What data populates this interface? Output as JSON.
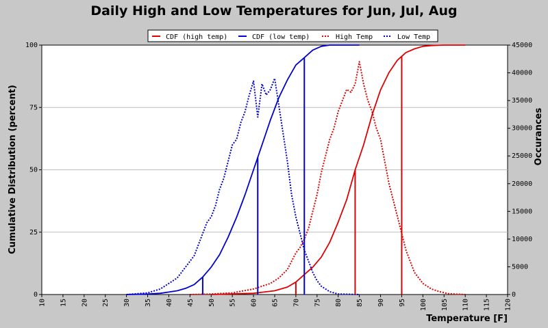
{
  "chart_data": {
    "type": "line",
    "title": "Daily High and Low Temperatures for Jun, Jul, Aug",
    "xlabel": "Temperature [F]",
    "ylabel_left": "Cumulative Distribution (percent)",
    "ylabel_right": "Occurances",
    "xlim": [
      10,
      120
    ],
    "ylim_left": [
      0,
      100
    ],
    "ylim_right": [
      0,
      45000
    ],
    "x_ticks": [
      "10",
      "15",
      "20",
      "25",
      "30",
      "35",
      "40",
      "45",
      "50",
      "55",
      "60",
      "65",
      "70",
      "75",
      "80",
      "85",
      "90",
      "95",
      "100",
      "105",
      "110",
      "115",
      "120"
    ],
    "y_left_ticks": [
      "0",
      "25",
      "50",
      "75",
      "100"
    ],
    "y_right_ticks": [
      "0",
      "5000",
      "10000",
      "15000",
      "20000",
      "25000",
      "30000",
      "35000",
      "40000",
      "45000"
    ],
    "grid": "horizontal",
    "legend": [
      "CDF (high temp)",
      "CDF (low temp)",
      "High Temp",
      "Low Temp"
    ],
    "colors": {
      "high": "#e00000",
      "low": "#0000d0",
      "background": "#c8c8c8",
      "plot_bg": "#ffffff"
    },
    "series": [
      {
        "name": "CDF (high temp)",
        "axis": "left",
        "style": "solid",
        "color": "#e00000",
        "x": [
          50,
          60,
          65,
          68,
          70,
          72,
          74,
          76,
          78,
          80,
          82,
          84,
          86,
          88,
          90,
          92,
          94,
          96,
          98,
          100,
          102,
          105,
          110
        ],
        "y": [
          0,
          0.5,
          1.5,
          3,
          5,
          8,
          11,
          15,
          21,
          29,
          38,
          50,
          60,
          72,
          82,
          89,
          94,
          97,
          98.5,
          99.5,
          99.8,
          100,
          100
        ]
      },
      {
        "name": "CDF (low temp)",
        "axis": "left",
        "style": "solid",
        "color": "#0000d0",
        "x": [
          30,
          35,
          38,
          40,
          42,
          44,
          46,
          48,
          50,
          52,
          54,
          56,
          58,
          60,
          62,
          64,
          66,
          68,
          70,
          72,
          74,
          76,
          78,
          80,
          85
        ],
        "y": [
          0,
          0.2,
          0.5,
          1,
          1.5,
          2.5,
          4,
          7,
          11,
          16,
          23,
          31,
          40,
          50,
          60,
          70,
          79,
          86,
          92,
          95,
          98,
          99.5,
          100,
          100,
          100
        ]
      },
      {
        "name": "High Temp",
        "axis": "right",
        "style": "dotted",
        "color": "#e00000",
        "x": [
          45,
          50,
          55,
          60,
          62,
          64,
          66,
          68,
          69,
          70,
          71,
          72,
          73,
          74,
          75,
          76,
          77,
          78,
          79,
          80,
          81,
          82,
          83,
          84,
          85,
          86,
          87,
          88,
          89,
          90,
          91,
          92,
          93,
          94,
          95,
          96,
          97,
          98,
          99,
          100,
          102,
          104,
          106,
          110
        ],
        "y": [
          0,
          100,
          300,
          1000,
          1500,
          2000,
          3000,
          4500,
          6000,
          7500,
          8500,
          10000,
          12000,
          15000,
          18000,
          22000,
          25000,
          28000,
          30000,
          33000,
          35000,
          37000,
          36500,
          38000,
          42000,
          38000,
          35000,
          33000,
          30000,
          28000,
          24000,
          20000,
          17000,
          14000,
          11000,
          8000,
          6000,
          4000,
          3000,
          2000,
          1000,
          500,
          150,
          0
        ]
      },
      {
        "name": "Low Temp",
        "axis": "right",
        "style": "dotted",
        "color": "#0000d0",
        "x": [
          30,
          35,
          38,
          40,
          42,
          44,
          46,
          47,
          48,
          49,
          50,
          51,
          52,
          53,
          54,
          55,
          56,
          57,
          58,
          59,
          60,
          61,
          62,
          63,
          64,
          65,
          66,
          67,
          68,
          69,
          70,
          71,
          72,
          73,
          74,
          75,
          76,
          78,
          80,
          85
        ],
        "y": [
          0,
          300,
          1000,
          2000,
          3000,
          5000,
          7000,
          9000,
          11000,
          13000,
          14000,
          16000,
          19000,
          21000,
          24000,
          27000,
          28000,
          31000,
          33000,
          36000,
          38500,
          32000,
          38000,
          36000,
          37000,
          39000,
          34000,
          29000,
          24000,
          18000,
          14000,
          11000,
          8000,
          6000,
          4000,
          2500,
          1500,
          500,
          100,
          0
        ]
      }
    ],
    "markers": [
      {
        "x": 48,
        "series": "CDF (low temp)"
      },
      {
        "x": 61,
        "series": "CDF (low temp)"
      },
      {
        "x": 72,
        "series": "CDF (low temp)"
      },
      {
        "x": 70,
        "series": "CDF (high temp)"
      },
      {
        "x": 84,
        "series": "CDF (high temp)"
      },
      {
        "x": 95,
        "series": "CDF (high temp)"
      }
    ]
  }
}
